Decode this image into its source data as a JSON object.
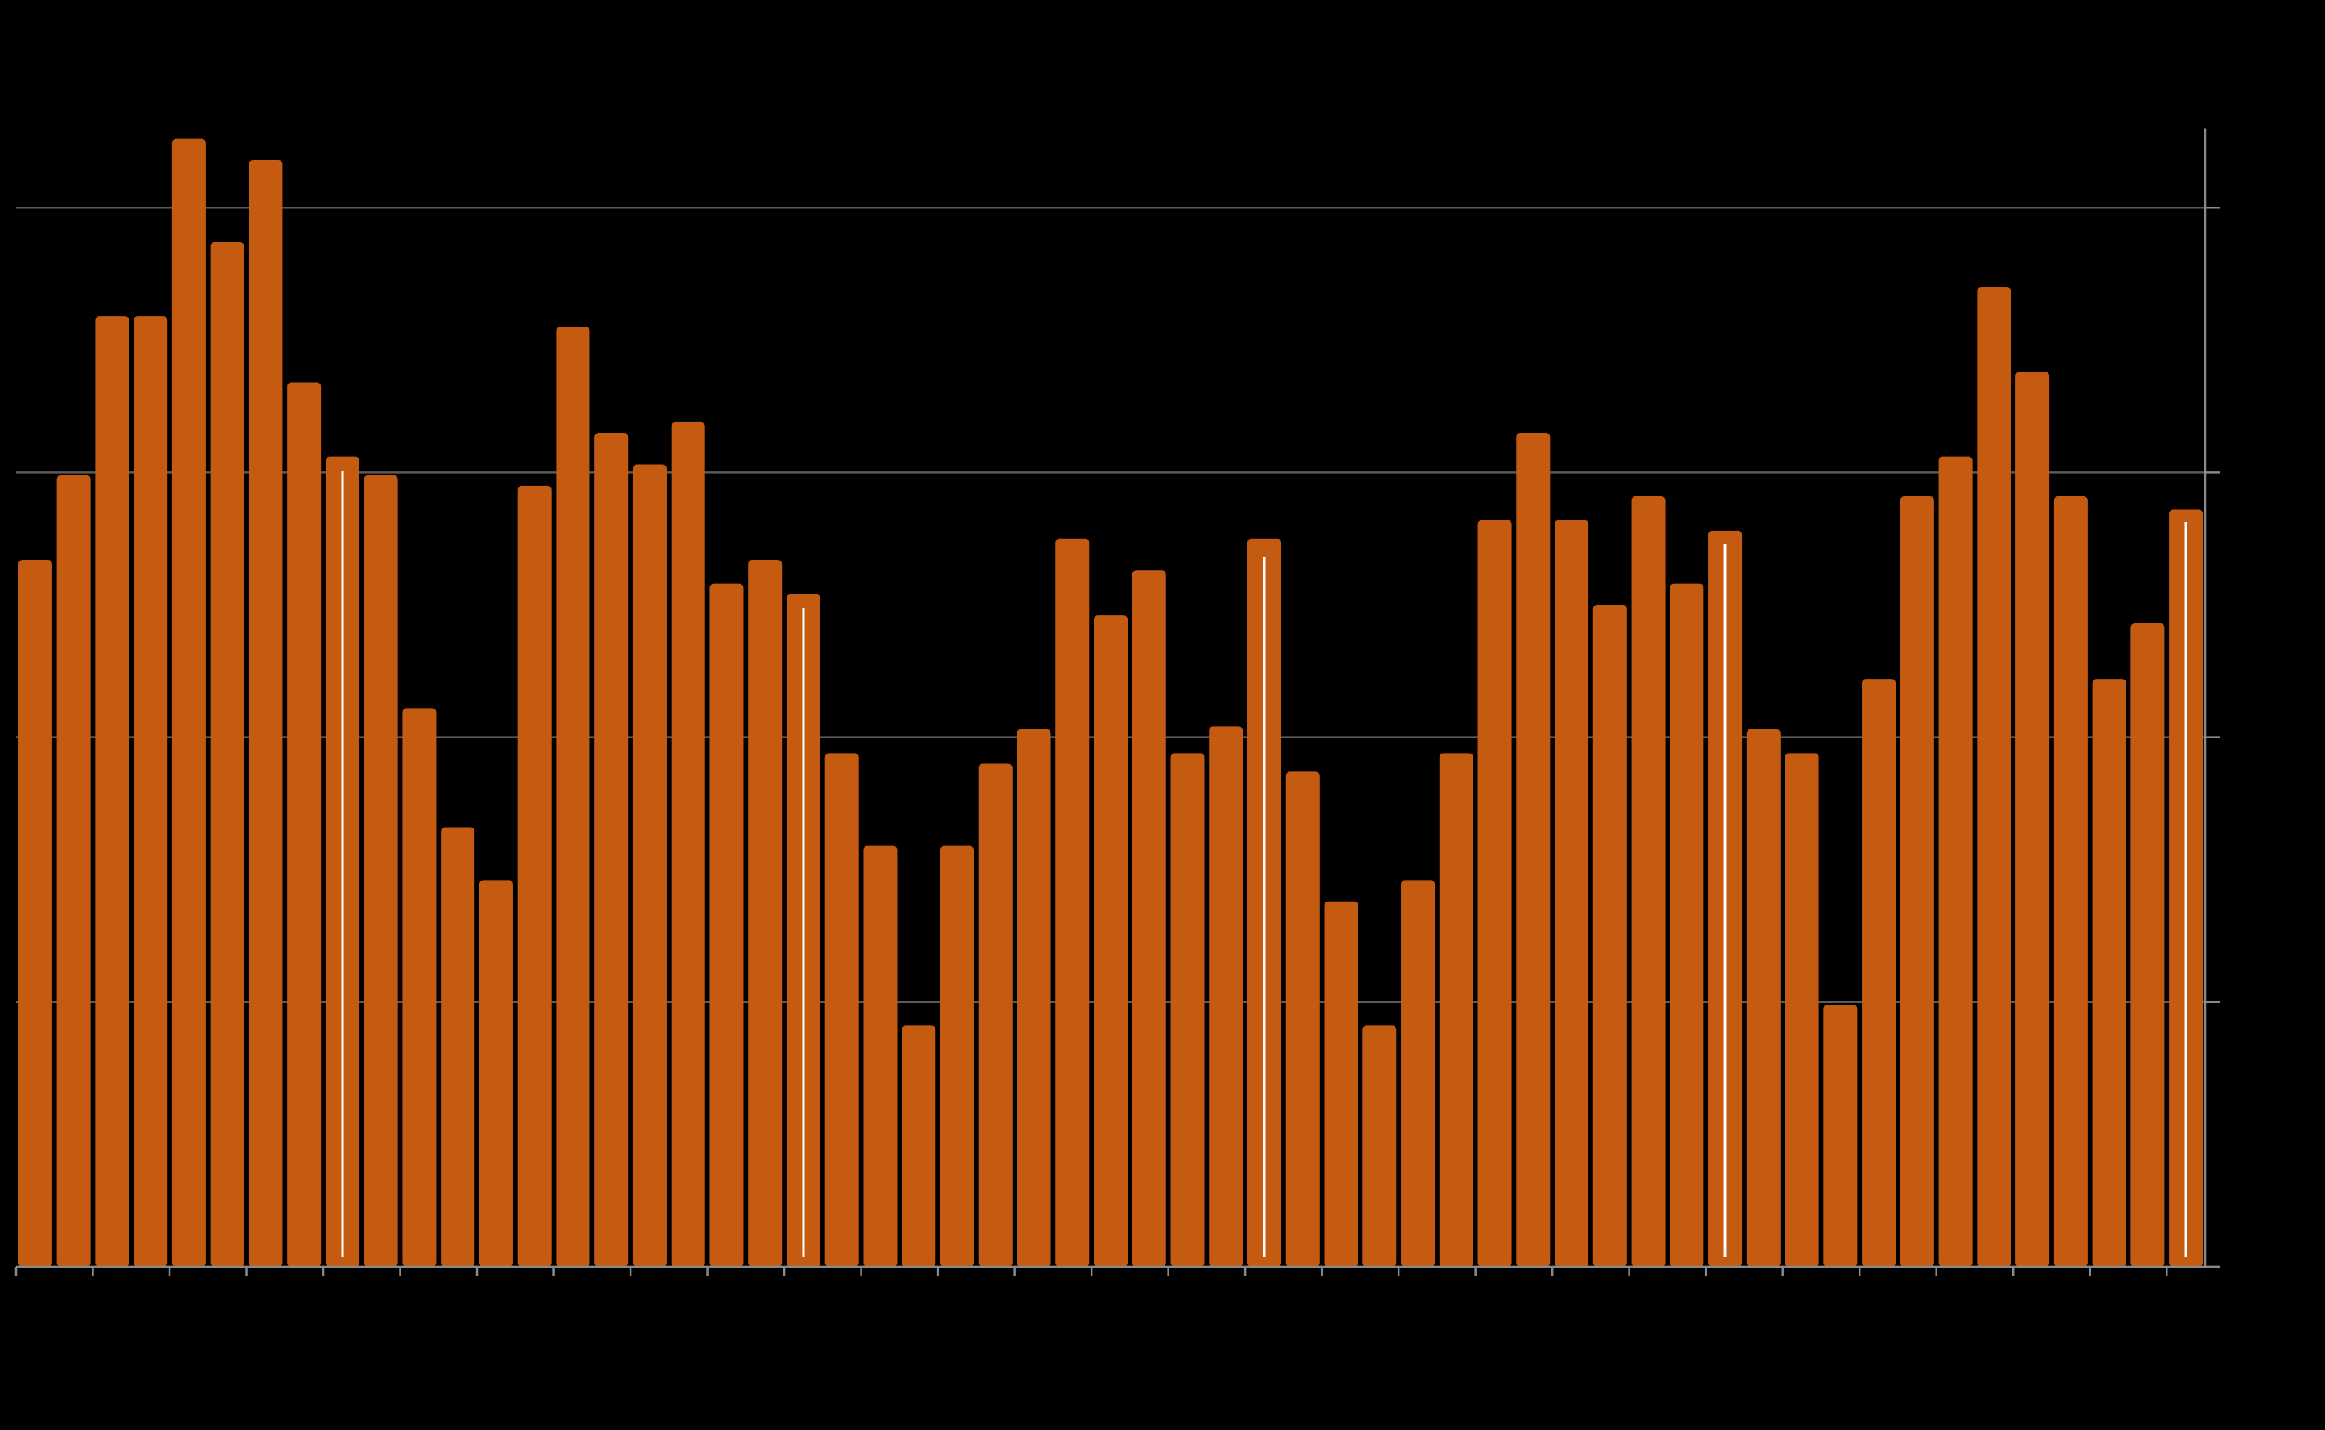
{
  "chart_data": {
    "type": "bar",
    "categories": [
      null,
      null,
      null,
      null,
      null,
      null,
      null,
      null,
      null,
      null,
      null,
      null,
      null,
      null,
      null,
      null,
      null,
      null,
      null,
      null,
      null,
      null,
      null,
      null,
      null,
      null,
      null,
      null,
      null,
      null,
      null,
      null,
      null,
      null,
      null,
      null,
      null,
      null,
      null,
      null,
      null,
      null,
      null,
      null,
      null,
      null,
      null,
      null,
      null,
      null,
      null,
      null,
      null,
      null,
      null,
      null,
      null
    ],
    "values": [
      2.67,
      2.99,
      3.59,
      3.59,
      4.26,
      3.87,
      4.18,
      3.34,
      3.06,
      2.99,
      2.11,
      1.66,
      1.46,
      2.95,
      3.55,
      3.15,
      3.03,
      3.19,
      2.58,
      2.67,
      2.54,
      1.94,
      1.59,
      0.91,
      1.59,
      1.9,
      2.03,
      2.75,
      2.46,
      2.63,
      1.94,
      2.04,
      2.75,
      1.87,
      1.38,
      0.91,
      1.46,
      1.94,
      2.82,
      3.15,
      2.82,
      2.5,
      2.91,
      2.58,
      2.78,
      2.03,
      1.94,
      0.99,
      2.22,
      2.91,
      3.06,
      3.7,
      3.38,
      2.91,
      2.22,
      2.43,
      2.86
    ],
    "color": "#c55a11",
    "ylim": [
      0,
      4.3
    ],
    "yticks": [
      0,
      1,
      2,
      3,
      4
    ],
    "grid": true
  }
}
